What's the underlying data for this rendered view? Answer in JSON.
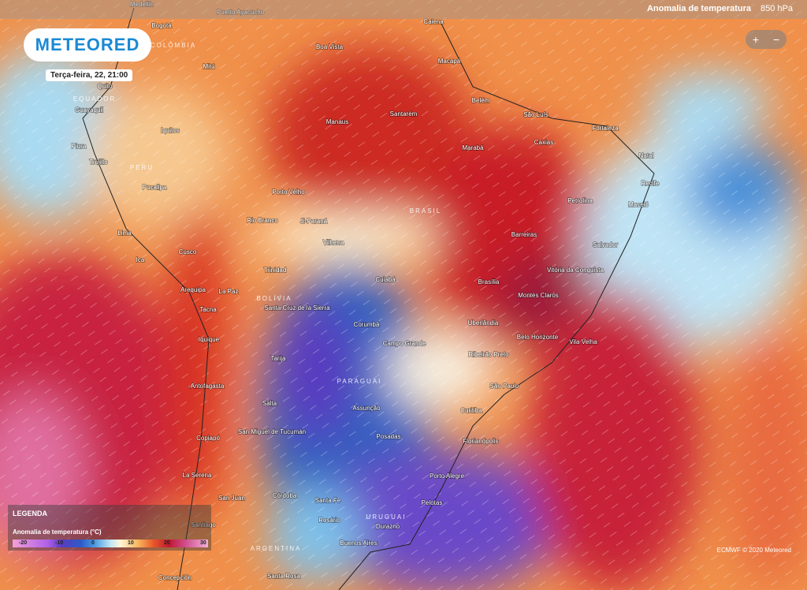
{
  "header": {
    "layer": "Anomalia de temperatura",
    "level": "850 hPa"
  },
  "logo": "METEORED",
  "date": "Terça-feira, 22, 21:00",
  "zoom": {
    "in": "+",
    "out": "−"
  },
  "cities": [
    "Medellín",
    "Puerto Ayacucho",
    "Caiena",
    "Bogotá",
    "Boa Vista",
    "Mitú",
    "Macapá",
    "Quito",
    "Guayaquil",
    "Manaus",
    "Santarém",
    "Belém",
    "São Luís",
    "Fortaleza",
    "Iquitos",
    "Marabá",
    "Caxias",
    "Natal",
    "Piura",
    "Trujillo",
    "Pucallpa",
    "Porto Velho",
    "Recife",
    "Petrolina",
    "Maceió",
    "Rio Branco",
    "Ji-Paraná",
    "Barreiras",
    "Lima",
    "Vilhena",
    "Salvador",
    "Cusco",
    "Ica",
    "Trinidad",
    "Cuiabá",
    "Vitória da Conquista",
    "Brasília",
    "La Paz",
    "Arequipa",
    "Montes Claros",
    "Tacna",
    "Santa Cruz de la Sierra",
    "Corumbá",
    "Uberlândia",
    "Iquique",
    "Campo Grande",
    "Belo Horizonte",
    "Vila Velha",
    "Ribeirão Preto",
    "Tarija",
    "São Paulo",
    "Antofagasta",
    "Salta",
    "Assunção",
    "Curitiba",
    "Posadas",
    "Florianópolis",
    "San Miguel de Tucumán",
    "Copiapó",
    "La Serena",
    "Porto Alegre",
    "San Juan",
    "Córdoba",
    "Santa Fe",
    "Pelotas",
    "Rosário",
    "Durazno",
    "Santiago",
    "Buenos Aires",
    "Concepción",
    "Santa Rosa"
  ],
  "countries": [
    "COLÔMBIA",
    "EQUADOR",
    "PERU",
    "BRASIL",
    "BOLÍVIA",
    "PARAGUAI",
    "URUGUAI",
    "ARGENTINA"
  ],
  "legend": {
    "title": "LEGENDA",
    "subtitle": "Anomalia de temperatura (°C)",
    "ticks": [
      -20,
      -10,
      0,
      10,
      20,
      30
    ]
  },
  "credit": "ECMWF © 2020 Meteored"
}
